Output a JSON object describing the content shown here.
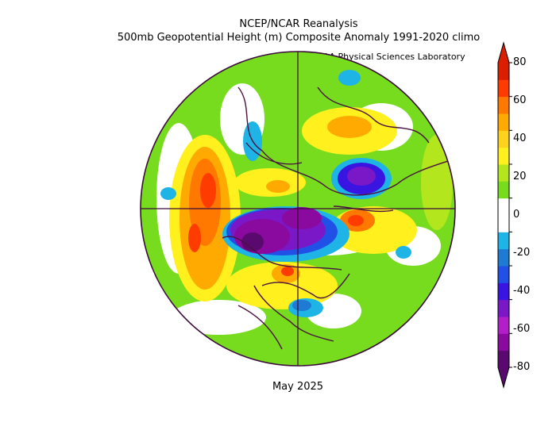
{
  "header": {
    "line1": "NCEP/NCAR Reanalysis",
    "line2": "500mb Geopotential Height (m) Composite Anomaly 1991-2020 climo",
    "credit": "NOAA Physical Sciences Laboratory"
  },
  "footer": {
    "date": "May 2025"
  },
  "colorbar": {
    "labels": [
      "80",
      "60",
      "40",
      "20",
      "0",
      "-20",
      "-40",
      "-60",
      "-80"
    ],
    "bands": [
      "#5a0a6e",
      "#8a0aa0",
      "#b21ec8",
      "#7a18c8",
      "#3a14e0",
      "#2050e6",
      "#1e7ad2",
      "#1eb4e6",
      "#ffffff",
      "#ffffff",
      "#78dc1e",
      "#b4e61e",
      "#fff01e",
      "#ffd21e",
      "#ffaa00",
      "#ff7800",
      "#ff3c00",
      "#dc1e00"
    ]
  },
  "map": {
    "projection": "north-polar-stereographic",
    "variable": "500mb height anomaly (m)"
  }
}
